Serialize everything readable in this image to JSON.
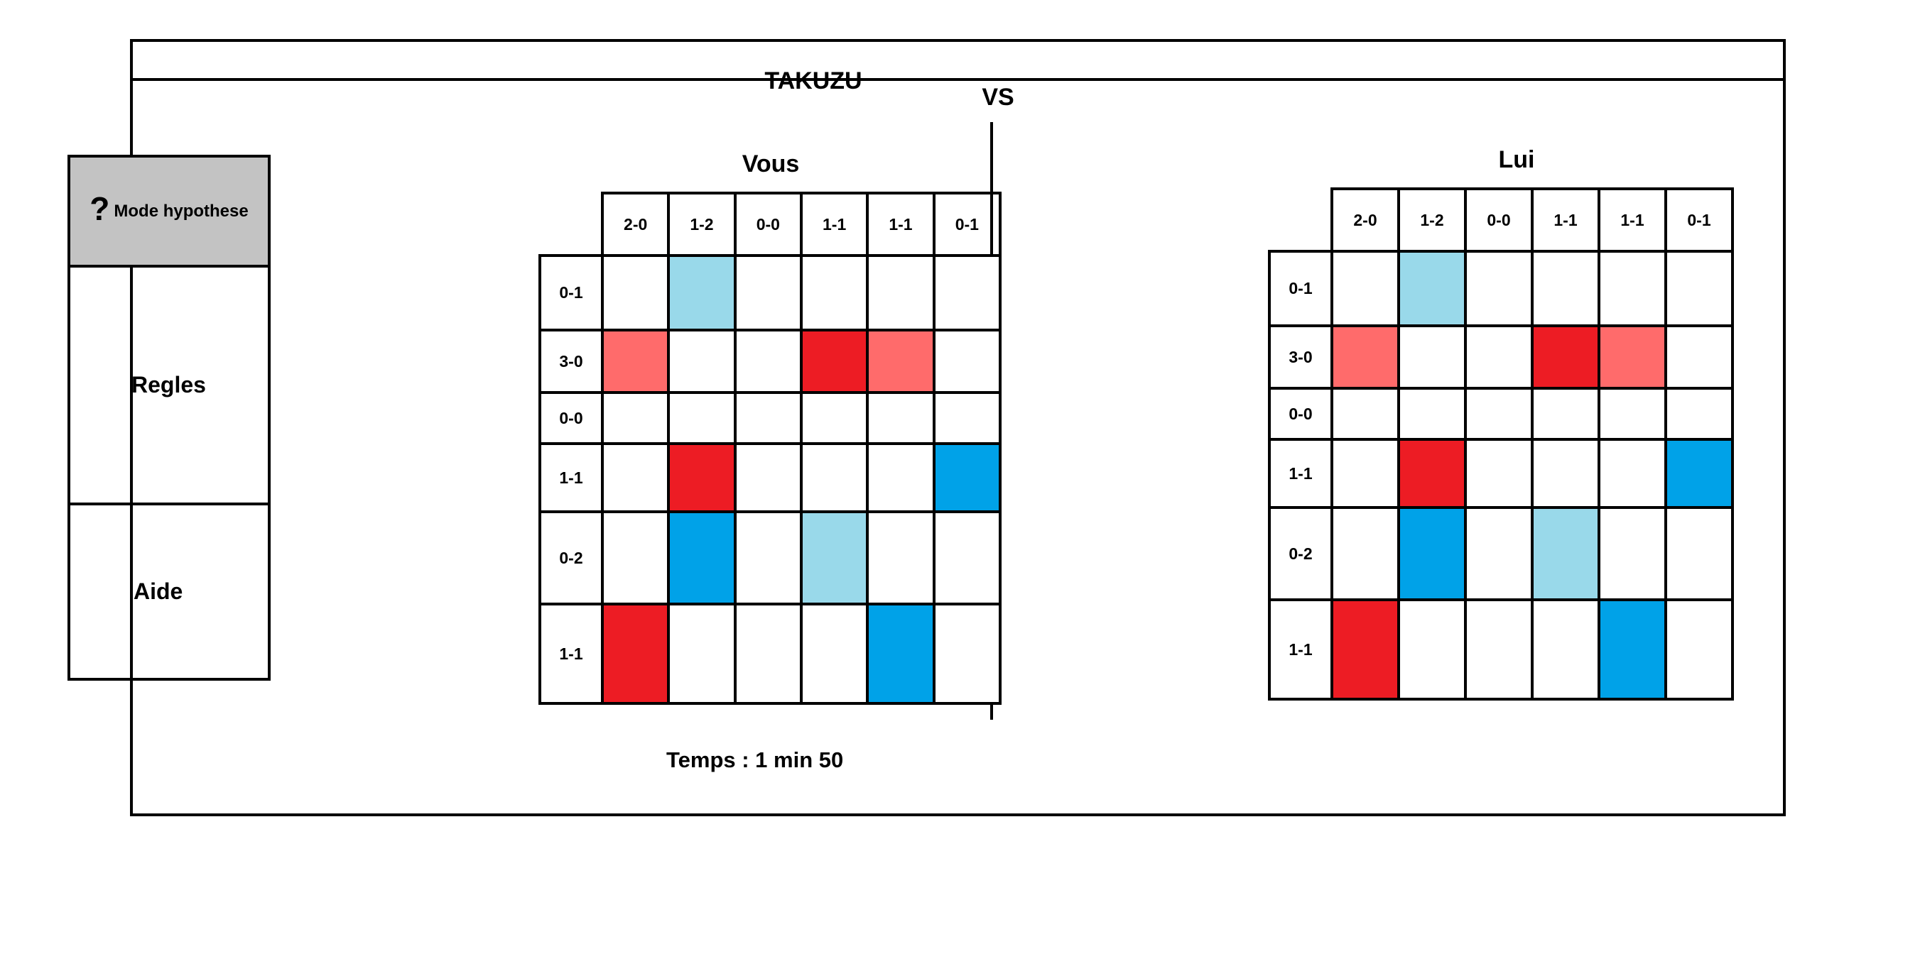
{
  "title": "TAKUZU",
  "vs_label": "VS",
  "sidebar": {
    "mode_icon": "?",
    "mode_label": "Mode hypothese",
    "rules_label": "Regles",
    "help_label": "Aide"
  },
  "colors": {
    "R": "#ed1c24",
    "r": "#ff6b6b",
    "B": "#00a2e8",
    "b": "#99d9ea",
    "empty": "#ffffff"
  },
  "players": [
    {
      "label": "Vous",
      "column_counts": [
        "2-0",
        "1-2",
        "0-0",
        "1-1",
        "1-1",
        "0-1"
      ],
      "row_counts": [
        "0-1",
        "3-0",
        "0-0",
        "1-1",
        "0-2",
        "1-1"
      ],
      "cells": [
        [
          "",
          "b",
          "",
          "",
          "",
          ""
        ],
        [
          "r",
          "",
          "",
          "R",
          "r",
          ""
        ],
        [
          "",
          "",
          "",
          "",
          "",
          ""
        ],
        [
          "",
          "R",
          "",
          "",
          "",
          "B"
        ],
        [
          "",
          "B",
          "",
          "b",
          "",
          ""
        ],
        [
          "R",
          "",
          "",
          "",
          "B",
          ""
        ]
      ]
    },
    {
      "label": "Lui",
      "column_counts": [
        "2-0",
        "1-2",
        "0-0",
        "1-1",
        "1-1",
        "0-1"
      ],
      "row_counts": [
        "0-1",
        "3-0",
        "0-0",
        "1-1",
        "0-2",
        "1-1"
      ],
      "cells": [
        [
          "",
          "b",
          "",
          "",
          "",
          ""
        ],
        [
          "r",
          "",
          "",
          "R",
          "r",
          ""
        ],
        [
          "",
          "",
          "",
          "",
          "",
          ""
        ],
        [
          "",
          "R",
          "",
          "",
          "",
          "B"
        ],
        [
          "",
          "B",
          "",
          "b",
          "",
          ""
        ],
        [
          "R",
          "",
          "",
          "",
          "B",
          ""
        ]
      ]
    }
  ],
  "timer": "Temps : 1 min 50"
}
